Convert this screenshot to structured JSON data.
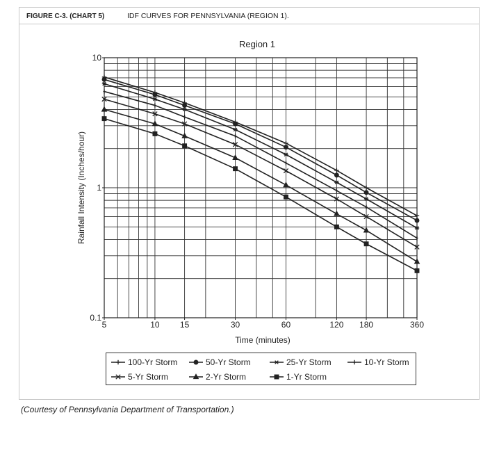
{
  "header": {
    "figure_label": "FIGURE C-3. (CHART 5)",
    "title": "IDF CURVES FOR PENNSYLVANIA (REGION 1)."
  },
  "chart_data": {
    "type": "line",
    "title": "Region 1",
    "x_label": "Time (minutes)",
    "y_label": "Rainfall Intensity (Inches/hour)",
    "x": [
      5,
      10,
      15,
      30,
      60,
      120,
      180,
      360
    ],
    "xlim": [
      5,
      360
    ],
    "ylim": [
      0.1,
      10
    ],
    "xscale": "log",
    "yscale": "log",
    "xticks": [
      5,
      10,
      15,
      30,
      60,
      120,
      180,
      360
    ],
    "yticks": [
      0.1,
      1,
      10
    ],
    "xgrid": [
      6,
      7,
      8,
      9,
      10,
      15,
      20,
      30,
      40,
      50,
      60,
      90,
      120,
      180,
      240,
      300
    ],
    "ygrid": [
      0.2,
      0.3,
      0.4,
      0.5,
      0.6,
      0.7,
      0.8,
      0.9,
      1,
      2,
      3,
      4,
      5,
      6,
      7,
      8,
      9
    ],
    "grid": true,
    "legend_position": "bottom",
    "series": [
      {
        "name": "100-Yr Storm",
        "color": "#222222",
        "marker": "plus",
        "values": [
          7.1,
          5.4,
          4.5,
          3.2,
          2.2,
          1.36,
          1.0,
          0.61
        ]
      },
      {
        "name": "50-Yr Storm",
        "color": "#222222",
        "marker": "circle",
        "values": [
          6.8,
          5.2,
          4.3,
          3.1,
          2.05,
          1.25,
          0.92,
          0.56
        ]
      },
      {
        "name": "25-Yr Storm",
        "color": "#222222",
        "marker": "asterisk",
        "values": [
          6.3,
          4.8,
          4.0,
          2.8,
          1.8,
          1.1,
          0.82,
          0.49
        ]
      },
      {
        "name": "10-Yr Storm",
        "color": "#222222",
        "marker": "bar",
        "values": [
          5.5,
          4.3,
          3.5,
          2.5,
          1.55,
          0.95,
          0.71,
          0.41
        ]
      },
      {
        "name": "5-Yr Storm",
        "color": "#222222",
        "marker": "x",
        "values": [
          4.8,
          3.7,
          3.1,
          2.15,
          1.35,
          0.82,
          0.6,
          0.35
        ]
      },
      {
        "name": "2-Yr Storm",
        "color": "#222222",
        "marker": "triangle",
        "values": [
          4.0,
          3.1,
          2.5,
          1.7,
          1.05,
          0.63,
          0.47,
          0.27
        ]
      },
      {
        "name": "1-Yr Storm",
        "color": "#222222",
        "marker": "square",
        "values": [
          3.4,
          2.6,
          2.1,
          1.4,
          0.85,
          0.5,
          0.37,
          0.23
        ]
      }
    ]
  },
  "caption": "(Courtesy of Pennsylvania Department of Transportation.)"
}
